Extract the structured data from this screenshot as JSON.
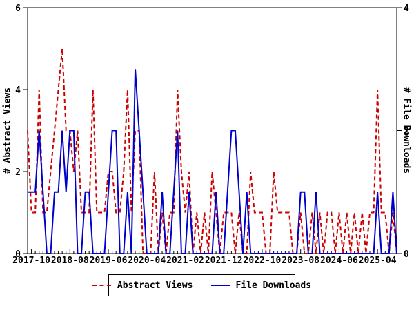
{
  "chart_data": {
    "type": "line",
    "x": [
      "2017-09",
      "2017-10",
      "2017-11",
      "2017-12",
      "2018-01",
      "2018-02",
      "2018-03",
      "2018-04",
      "2018-05",
      "2018-06",
      "2018-07",
      "2018-08",
      "2018-09",
      "2018-10",
      "2018-11",
      "2018-12",
      "2019-01",
      "2019-02",
      "2019-03",
      "2019-04",
      "2019-05",
      "2019-06",
      "2019-07",
      "2019-08",
      "2019-09",
      "2019-10",
      "2019-11",
      "2019-12",
      "2020-01",
      "2020-02",
      "2020-03",
      "2020-04",
      "2020-05",
      "2020-06",
      "2020-07",
      "2020-08",
      "2020-09",
      "2020-10",
      "2020-11",
      "2020-12",
      "2021-01",
      "2021-02",
      "2021-03",
      "2021-04",
      "2021-05",
      "2021-06",
      "2021-07",
      "2021-08",
      "2021-09",
      "2021-10",
      "2021-11",
      "2021-12",
      "2022-01",
      "2022-02",
      "2022-03",
      "2022-04",
      "2022-05",
      "2022-06",
      "2022-07",
      "2022-08",
      "2022-09",
      "2022-10",
      "2022-11",
      "2022-12",
      "2023-01",
      "2023-02",
      "2023-03",
      "2023-04",
      "2023-05",
      "2023-06",
      "2023-07",
      "2023-08",
      "2023-09",
      "2023-10",
      "2023-11",
      "2023-12",
      "2024-01",
      "2024-02",
      "2024-03",
      "2024-04",
      "2024-05",
      "2024-06",
      "2024-07",
      "2024-08",
      "2024-09",
      "2024-10",
      "2024-11",
      "2024-12",
      "2025-01",
      "2025-02",
      "2025-03",
      "2025-04",
      "2025-05",
      "2025-06",
      "2025-07",
      "2025-08",
      "2025-09"
    ],
    "series": [
      {
        "name": "Abstract Views",
        "axis": "left",
        "color": "#cc0000",
        "style": "dashed",
        "values": [
          3,
          1,
          1,
          4,
          1,
          1,
          2,
          3,
          4,
          5,
          3,
          3,
          2,
          3,
          1,
          1,
          1,
          4,
          1,
          1,
          1,
          2,
          2,
          1,
          1,
          2,
          4,
          1,
          3,
          3,
          0,
          0,
          0,
          2,
          0,
          1,
          0,
          1,
          1,
          4,
          2,
          1,
          2,
          0,
          1,
          0,
          1,
          0,
          2,
          1,
          0,
          1,
          1,
          1,
          0,
          1,
          0,
          0,
          2,
          1,
          1,
          1,
          0,
          0,
          2,
          1,
          1,
          1,
          1,
          0,
          0,
          1,
          0,
          0,
          1,
          0,
          1,
          0,
          1,
          1,
          0,
          1,
          0,
          1,
          0,
          1,
          0,
          1,
          0,
          1,
          1,
          4,
          1,
          1,
          0,
          1,
          0
        ]
      },
      {
        "name": "File Downloads",
        "axis": "right",
        "color": "#0000cc",
        "style": "solid",
        "values": [
          1,
          1,
          1,
          2,
          1,
          0,
          0,
          1,
          1,
          2,
          1,
          2,
          2,
          0,
          0,
          1,
          1,
          0,
          0,
          0,
          0,
          1,
          2,
          2,
          0,
          0,
          1,
          0,
          3,
          2,
          1,
          0,
          0,
          0,
          0,
          1,
          0,
          0,
          1,
          2,
          0,
          0,
          1,
          0,
          0,
          0,
          0,
          0,
          0,
          1,
          0,
          0,
          1,
          2,
          2,
          1,
          0,
          1,
          0,
          0,
          0,
          0,
          0,
          0,
          0,
          0,
          0,
          0,
          0,
          0,
          0,
          1,
          1,
          0,
          0,
          1,
          0,
          0,
          0,
          0,
          0,
          0,
          0,
          0,
          0,
          0,
          0,
          0,
          0,
          0,
          0,
          1,
          0,
          0,
          0,
          1,
          0
        ]
      }
    ],
    "left_axis": {
      "label": "# Abstract Views",
      "min": 0,
      "max": 6,
      "ticks": [
        0,
        2,
        4,
        6
      ]
    },
    "right_axis": {
      "label": "# File Downloads",
      "min": 0,
      "max": 4,
      "ticks": [
        0,
        2,
        4
      ]
    },
    "x_tick_labels": [
      "2017-10",
      "2018-08",
      "2019-06",
      "2020-04",
      "2021-02",
      "2021-12",
      "2022-10",
      "2023-08",
      "2024-06",
      "2025-04"
    ],
    "x_tick_every": 10,
    "x_tick_start_index": 1,
    "grid": false,
    "legend_position": "bottom",
    "legend": [
      "Abstract Views",
      "File Downloads"
    ],
    "colors": {
      "abstract_views": "#cc0000",
      "file_downloads": "#0000cc",
      "axis": "#000000",
      "background": "#ffffff"
    }
  }
}
